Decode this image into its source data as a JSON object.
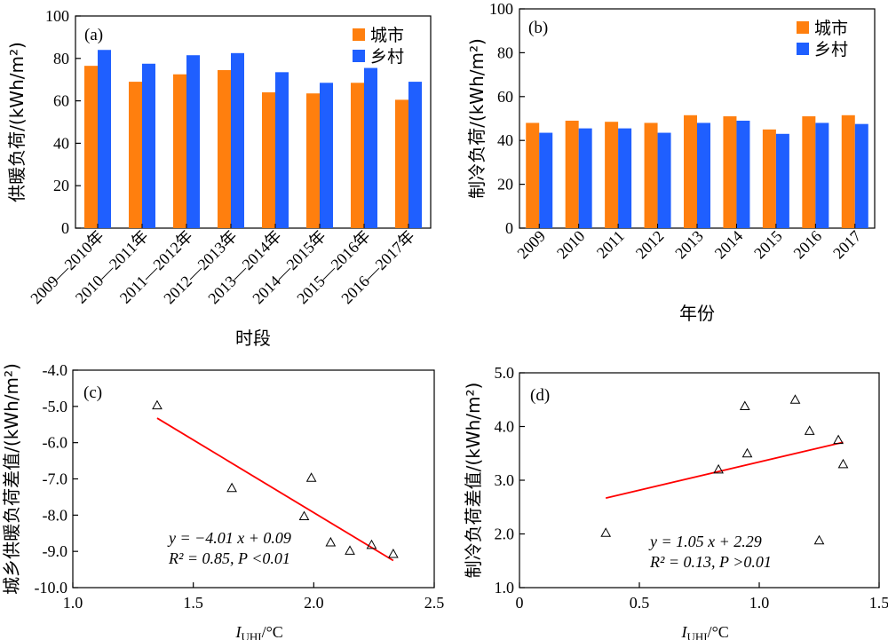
{
  "colors": {
    "city": "#FF7F0E",
    "rural": "#1F5FFF",
    "fit": "#FF0000",
    "marker": "#000000"
  },
  "chart_data": [
    {
      "panel": "(a)",
      "type": "bar",
      "ylabel": "供暖负荷/(kWh/m²)",
      "xlabel": "时段",
      "ylim": [
        0,
        100
      ],
      "yticks": [
        0,
        20,
        40,
        60,
        80,
        100
      ],
      "categories": [
        "2009—2010年",
        "2010—2011年",
        "2011—2012年",
        "2012—2013年",
        "2013—2014年",
        "2014—2015年",
        "2015—2016年",
        "2016—2017年"
      ],
      "series": [
        {
          "name": "城市",
          "values": [
            76.5,
            69,
            72.5,
            74.5,
            64,
            63.5,
            68.5,
            60.5
          ]
        },
        {
          "name": "乡村",
          "values": [
            84,
            77.5,
            81.5,
            82.5,
            73.5,
            68.5,
            75.5,
            69
          ]
        }
      ],
      "legend": "top-right",
      "grid": false
    },
    {
      "panel": "(b)",
      "type": "bar",
      "ylabel": "制冷负荷/(kWh/m²)",
      "xlabel": "年份",
      "ylim": [
        0,
        100
      ],
      "yticks": [
        0,
        20,
        40,
        60,
        80,
        100
      ],
      "categories": [
        "2009",
        "2010",
        "2011",
        "2012",
        "2013",
        "2014",
        "2015",
        "2016",
        "2017"
      ],
      "series": [
        {
          "name": "城市",
          "values": [
            48,
            49,
            48.5,
            48,
            51.5,
            51,
            45,
            51,
            51.5
          ]
        },
        {
          "name": "乡村",
          "values": [
            43.5,
            45.5,
            45.5,
            43.5,
            48,
            49,
            43,
            48,
            47.5
          ]
        }
      ],
      "legend": "top-right",
      "grid": false
    },
    {
      "panel": "(c)",
      "type": "scatter",
      "ylabel": "城乡供暖负荷差值/(kWh/m²)",
      "xlabel_main": "I",
      "xlabel_sub": "UHI",
      "xlabel_unit": "/°C",
      "xlim": [
        1.0,
        2.5
      ],
      "ylim": [
        -10.0,
        -4.0
      ],
      "xticks": [
        "1.0",
        "1.5",
        "2.0",
        "2.5"
      ],
      "yticks": [
        "-10.0",
        "-9.0",
        "-8.0",
        "-7.0",
        "-6.0",
        "-5.0",
        "-4.0"
      ],
      "x": [
        1.35,
        1.66,
        1.99,
        1.96,
        2.07,
        2.15,
        2.24,
        2.33
      ],
      "y": [
        -4.97,
        -7.25,
        -6.97,
        -8.03,
        -8.75,
        -8.98,
        -8.82,
        -9.07
      ],
      "fit": {
        "slope": -4.01,
        "intercept": 0.09,
        "x_range": [
          1.35,
          2.33
        ]
      },
      "equation": "y = −4.01 x + 0.09",
      "stats": "R² = 0.85, P <0.01",
      "grid": false
    },
    {
      "panel": "(d)",
      "type": "scatter",
      "ylabel": "制冷负荷差值/(kWh/m²)",
      "xlabel_main": "I",
      "xlabel_sub": "UHI",
      "xlabel_unit": "/°C",
      "xlim": [
        0,
        1.5
      ],
      "ylim": [
        1.0,
        5.0
      ],
      "xticks": [
        "0",
        "0.5",
        "1.0",
        "1.5"
      ],
      "yticks": [
        "1.0",
        "2.0",
        "3.0",
        "4.0",
        "5.0"
      ],
      "x": [
        0.36,
        0.83,
        0.94,
        0.95,
        1.15,
        1.21,
        1.25,
        1.33,
        1.35
      ],
      "y": [
        2.02,
        3.2,
        4.38,
        3.5,
        4.5,
        3.92,
        1.88,
        3.75,
        3.3
      ],
      "fit": {
        "slope": 1.05,
        "intercept": 2.29,
        "x_range": [
          0.36,
          1.35
        ]
      },
      "equation": "y = 1.05 x + 2.29",
      "stats": "R² = 0.13, P >0.01",
      "grid": false
    }
  ]
}
